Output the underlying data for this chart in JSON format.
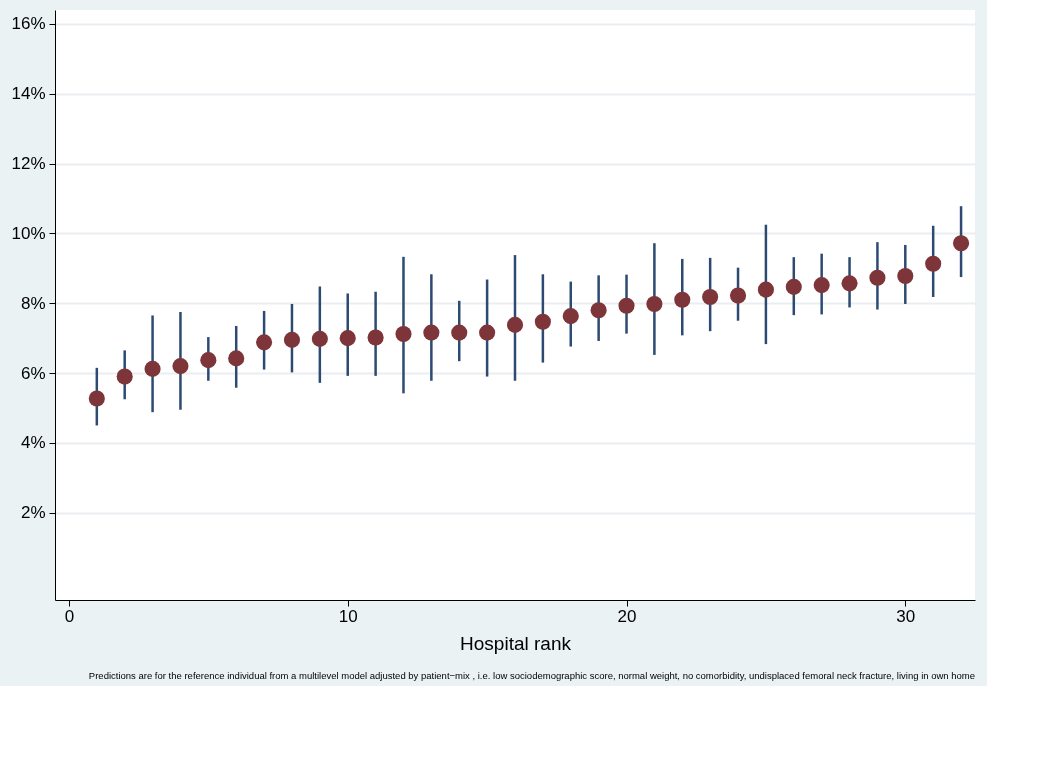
{
  "chart_data": {
    "type": "scatter",
    "xlabel": "Hospital rank",
    "annotations": [
      "Predictions are for the reference individual from a multilevel model adjusted by patient−mix , i.e. low sociodemographic score, normal weight, no comorbidity, undisplaced femoral neck fracture, living in own home"
    ],
    "x": [
      1,
      2,
      3,
      4,
      5,
      6,
      7,
      8,
      9,
      10,
      11,
      12,
      13,
      14,
      15,
      16,
      17,
      18,
      19,
      20,
      21,
      22,
      23,
      24,
      25,
      26,
      27,
      28,
      29,
      30,
      31,
      32
    ],
    "series": [
      {
        "color": "#7e3539",
        "values": [
          5.27,
          5.9,
          6.12,
          6.2,
          6.37,
          6.42,
          6.88,
          6.95,
          6.98,
          7.0,
          7.02,
          7.12,
          7.16,
          7.16,
          7.16,
          7.38,
          7.47,
          7.63,
          7.8,
          7.93,
          7.98,
          8.1,
          8.18,
          8.22,
          8.39,
          8.47,
          8.52,
          8.57,
          8.73,
          8.78,
          9.13,
          9.72
        ],
        "errors": [
          [
            4.5,
            6.15
          ],
          [
            5.25,
            6.65
          ],
          [
            4.88,
            7.65
          ],
          [
            4.95,
            7.75
          ],
          [
            5.78,
            7.03
          ],
          [
            5.58,
            7.35
          ],
          [
            6.1,
            7.78
          ],
          [
            6.02,
            7.98
          ],
          [
            5.72,
            8.48
          ],
          [
            5.92,
            8.28
          ],
          [
            5.92,
            8.33
          ],
          [
            5.42,
            9.33
          ],
          [
            5.78,
            8.83
          ],
          [
            6.34,
            8.07
          ],
          [
            5.9,
            8.68
          ],
          [
            5.78,
            9.38
          ],
          [
            6.3,
            8.83
          ],
          [
            6.76,
            8.62
          ],
          [
            6.92,
            8.8
          ],
          [
            7.13,
            8.82
          ],
          [
            6.52,
            9.72
          ],
          [
            7.08,
            9.27
          ],
          [
            7.2,
            9.3
          ],
          [
            7.5,
            9.02
          ],
          [
            6.83,
            10.25
          ],
          [
            7.66,
            9.32
          ],
          [
            7.68,
            9.42
          ],
          [
            7.88,
            9.32
          ],
          [
            7.82,
            9.75
          ],
          [
            7.98,
            9.67
          ],
          [
            8.18,
            10.22
          ],
          [
            8.75,
            10.78
          ]
        ]
      }
    ],
    "xlim": [
      -0.5,
      32.5
    ],
    "xticks": [
      0,
      10,
      20,
      30
    ],
    "ylim": [
      -0.5,
      16.4
    ],
    "yticks": [
      {
        "value": 2,
        "label": "2%"
      },
      {
        "value": 4,
        "label": "4%"
      },
      {
        "value": 6,
        "label": "6%"
      },
      {
        "value": 8,
        "label": "8%"
      },
      {
        "value": 10,
        "label": "10%"
      },
      {
        "value": 12,
        "label": "12%"
      },
      {
        "value": 14,
        "label": "14%"
      },
      {
        "value": 16,
        "label": "16%"
      }
    ],
    "grid": "y",
    "marker": "circle"
  }
}
